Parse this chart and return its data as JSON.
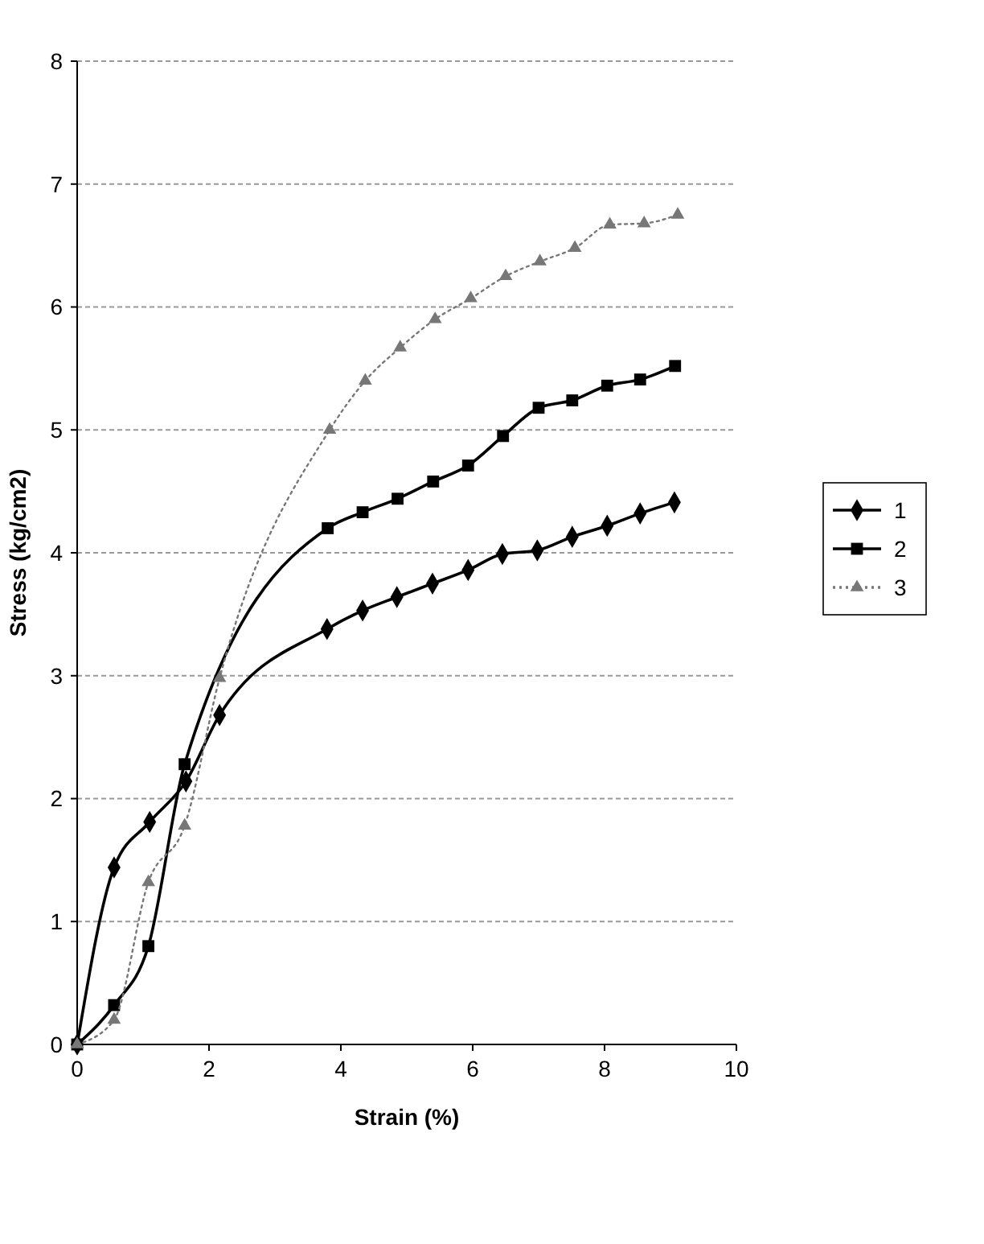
{
  "chart_data": {
    "type": "line",
    "xlabel": "Strain (%)",
    "ylabel": "Stress (kg/cm2)",
    "xlim": [
      0,
      10
    ],
    "ylim": [
      0,
      8
    ],
    "xticks": [
      0,
      2,
      4,
      6,
      8,
      10
    ],
    "yticks": [
      0,
      1,
      2,
      3,
      4,
      5,
      6,
      7,
      8
    ],
    "grid": "y",
    "legend": "right",
    "series": [
      {
        "name": "1",
        "color": "#000000",
        "marker": "diamond",
        "line_style": "solid",
        "x": [
          0,
          0.56,
          1.1,
          1.65,
          2.16,
          3.79,
          4.33,
          4.85,
          5.39,
          5.93,
          6.45,
          6.98,
          7.51,
          8.04,
          8.54,
          9.06
        ],
        "values": [
          0,
          1.44,
          1.81,
          2.14,
          2.68,
          3.38,
          3.53,
          3.64,
          3.75,
          3.86,
          3.99,
          4.02,
          4.13,
          4.22,
          4.32,
          4.41
        ]
      },
      {
        "name": "2",
        "color": "#000000",
        "marker": "square",
        "line_style": "solid",
        "x": [
          0,
          0.56,
          1.08,
          1.63,
          2.16,
          3.8,
          4.33,
          4.86,
          5.4,
          5.93,
          6.46,
          7.0,
          7.51,
          8.04,
          8.54,
          9.07
        ],
        "values": [
          0,
          0.32,
          0.8,
          2.28,
          null,
          4.2,
          4.33,
          4.44,
          4.58,
          4.71,
          4.95,
          5.18,
          5.24,
          5.36,
          5.41,
          5.52
        ]
      },
      {
        "name": "3",
        "color": "#777777",
        "marker": "triangle",
        "line_style": "dotted",
        "x": [
          0,
          0.56,
          1.08,
          1.63,
          2.16,
          3.83,
          4.37,
          4.9,
          5.43,
          5.97,
          6.5,
          7.02,
          7.55,
          8.08,
          8.6,
          9.11
        ],
        "values": [
          0,
          0.2,
          1.32,
          1.78,
          2.98,
          5.0,
          5.4,
          5.67,
          5.9,
          6.07,
          6.25,
          6.37,
          6.48,
          6.67,
          6.68,
          6.75
        ]
      }
    ]
  }
}
